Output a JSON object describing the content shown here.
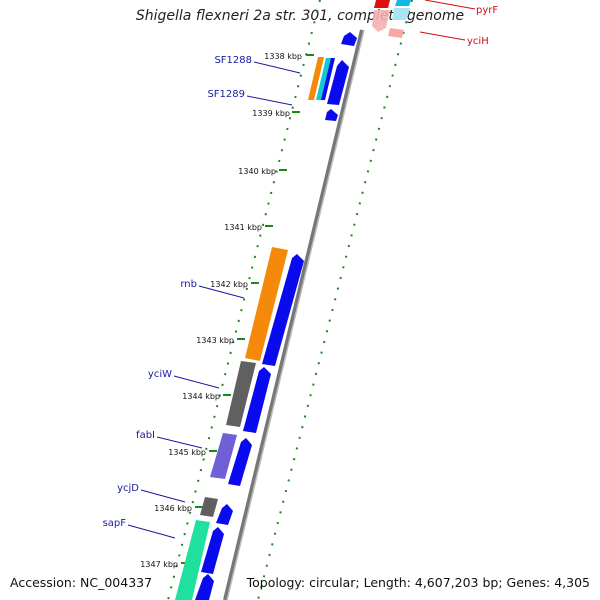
{
  "header": {
    "title": "Shigella flexneri 2a str. 301, complete genome"
  },
  "footer": {
    "accession": "Accession: NC_004337",
    "summary": "Topology: circular; Length: 4,607,203 bp; Genes: 4,305"
  },
  "ticks": [
    "1338 kbp",
    "1339 kbp",
    "1340 kbp",
    "1341 kbp",
    "1342 kbp",
    "1343 kbp",
    "1344 kbp",
    "1345 kbp",
    "1346 kbp",
    "1347 kbp"
  ],
  "gene_labels_left": [
    "SF1288",
    "SF1289",
    "rnb",
    "yciW",
    "fabI",
    "ycjD",
    "sapF"
  ],
  "gene_labels_right": [
    "pyrF",
    "yciH"
  ],
  "colors": {
    "blue": "#0a0aee",
    "orange": "#f58a0a",
    "cyan": "#14c8d8",
    "gray": "#606060",
    "purple": "#7060d8",
    "green": "#20e0a0",
    "red": "#e01010",
    "tick_green": "#1a8a1a",
    "label_blue": "#1a1aa0",
    "label_red": "#d01010"
  }
}
